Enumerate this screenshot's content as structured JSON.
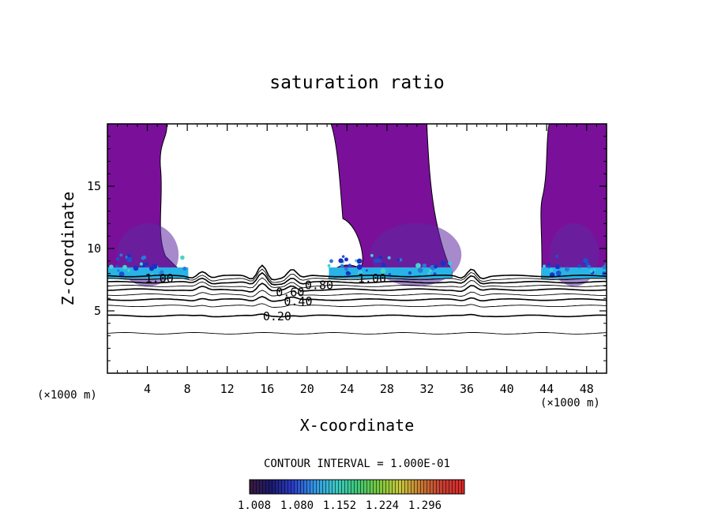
{
  "chart_data": {
    "type": "contour",
    "title": "saturation ratio",
    "xlabel": "X-coordinate",
    "ylabel": "Z-coordinate",
    "x_unit": "(×1000 m)",
    "y_unit": "(×1000 m)",
    "xlim": [
      0,
      50
    ],
    "ylim": [
      0,
      20
    ],
    "x_ticks": [
      4,
      8,
      12,
      16,
      20,
      24,
      28,
      32,
      36,
      40,
      44,
      48
    ],
    "y_ticks": [
      5,
      10,
      15
    ],
    "contour_interval_text": "CONTOUR INTERVAL = 1.000E-01",
    "contours": [
      {
        "level": 0.1,
        "label": "",
        "z": 3.2
      },
      {
        "level": 0.2,
        "label": "0.20",
        "z": 4.6
      },
      {
        "level": 0.3,
        "label": "",
        "z": 5.4
      },
      {
        "level": 0.4,
        "label": "0.40",
        "z": 5.9
      },
      {
        "level": 0.5,
        "label": "",
        "z": 6.3
      },
      {
        "level": 0.6,
        "label": "0.60",
        "z": 6.7
      },
      {
        "level": 0.7,
        "label": "",
        "z": 7.0
      },
      {
        "level": 0.8,
        "label": "0.80",
        "z": 7.3
      },
      {
        "level": 0.9,
        "label": "",
        "z": 7.55
      },
      {
        "level": 1.0,
        "label": "1.00",
        "z": 7.8
      }
    ],
    "colorbar": {
      "labels": [
        "1.008",
        "1.080",
        "1.152",
        "1.224",
        "1.296"
      ],
      "colors": [
        "#3c1a3c",
        "#1a1a6e",
        "#2a3cc8",
        "#3296e6",
        "#3cc8c8",
        "#3cc878",
        "#78c83c",
        "#c8c83c",
        "#c87832",
        "#c83c32",
        "#dc2828"
      ]
    },
    "supersaturated_regions": [
      {
        "x_range": [
          0,
          8.1
        ],
        "z_range": [
          7.6,
          20
        ],
        "color": "#7a109a"
      },
      {
        "x_range": [
          22.5,
          34.5
        ],
        "z_range": [
          7.6,
          20
        ],
        "color": "#7a109a"
      },
      {
        "x_range": [
          43.5,
          50
        ],
        "z_range": [
          7.6,
          20
        ],
        "color": "#7a109a"
      }
    ]
  }
}
